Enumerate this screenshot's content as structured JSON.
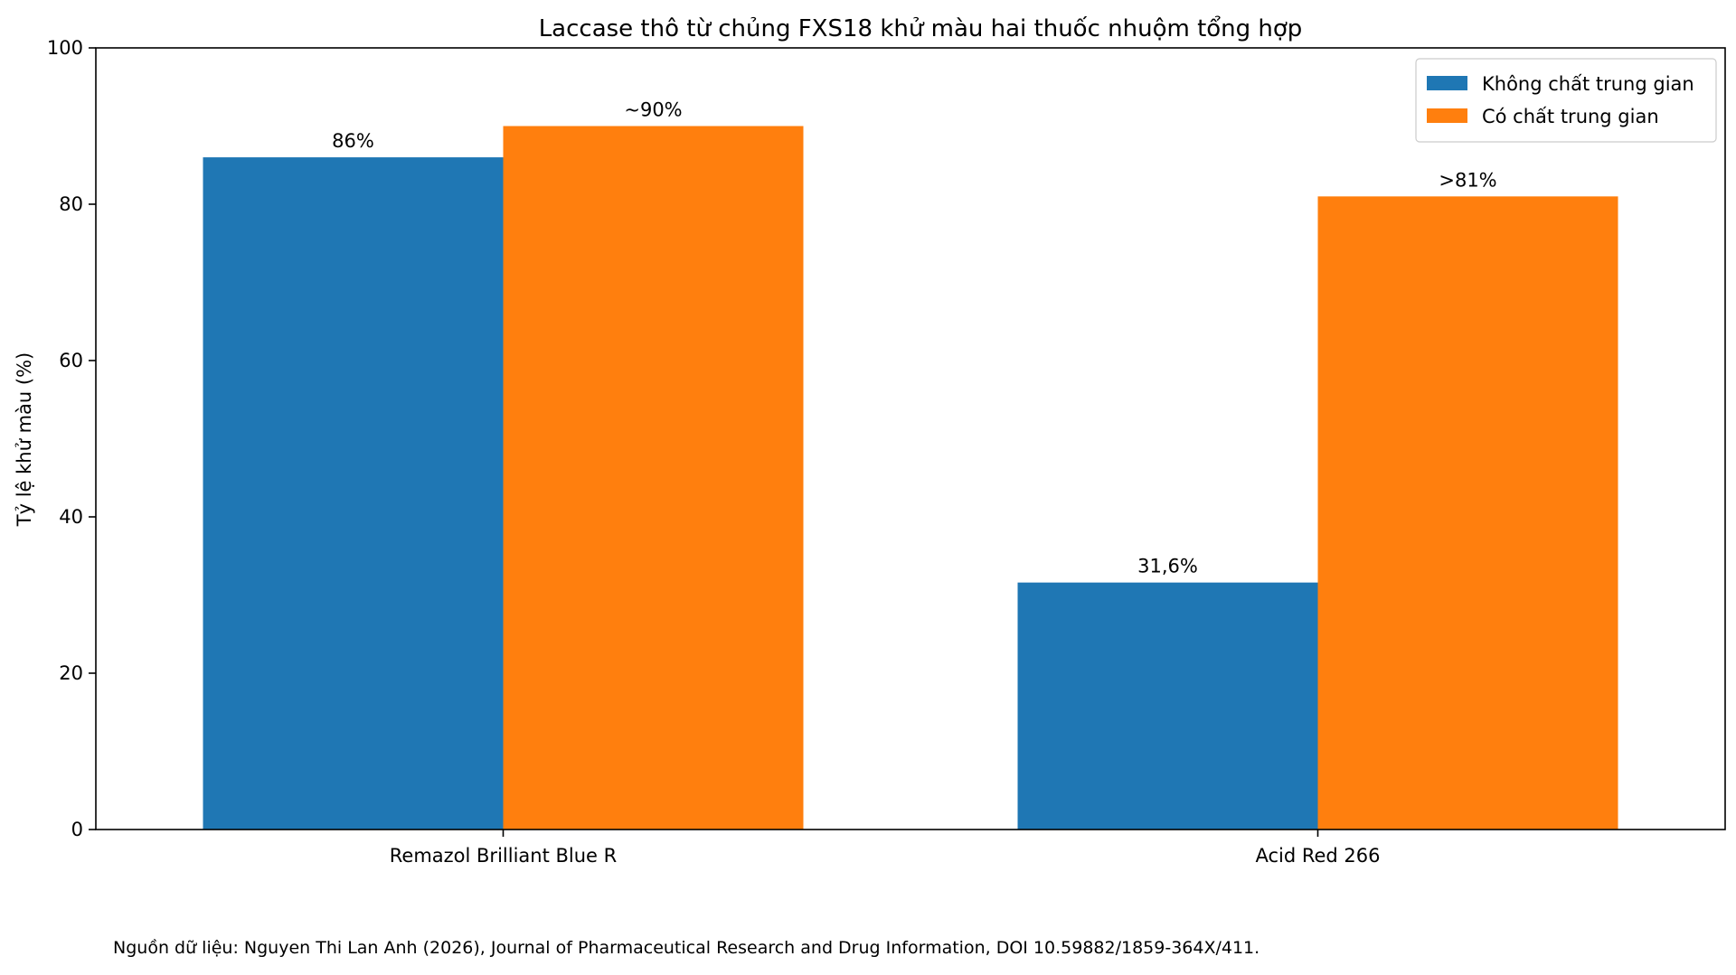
{
  "chart_data": {
    "type": "bar",
    "title": "Laccase thô từ chủng FXS18 khử màu hai thuốc nhuộm tổng hợp",
    "xlabel": "",
    "ylabel": "Tỷ lệ khử màu (%)",
    "ylim": [
      0,
      100
    ],
    "yticks": [
      "0",
      "20",
      "40",
      "60",
      "80",
      "100"
    ],
    "grid": false,
    "legend_position": "top-right",
    "categories": [
      "Remazol Brilliant Blue R",
      "Acid Red 266"
    ],
    "series": [
      {
        "name": "Không chất trung gian",
        "color": "#1f77b4",
        "values": [
          86,
          31.6
        ],
        "labels": [
          "86%",
          "31,6%"
        ]
      },
      {
        "name": "Có chất trung gian",
        "color": "#ff7f0e",
        "values": [
          90,
          81
        ],
        "labels": [
          "~90%",
          ">81%"
        ]
      }
    ]
  },
  "footer": {
    "source": "Nguồn dữ liệu: Nguyen Thi Lan Anh (2026), Journal of Pharmaceutical Research and Drug Information, DOI 10.59882/1859-364X/411."
  }
}
